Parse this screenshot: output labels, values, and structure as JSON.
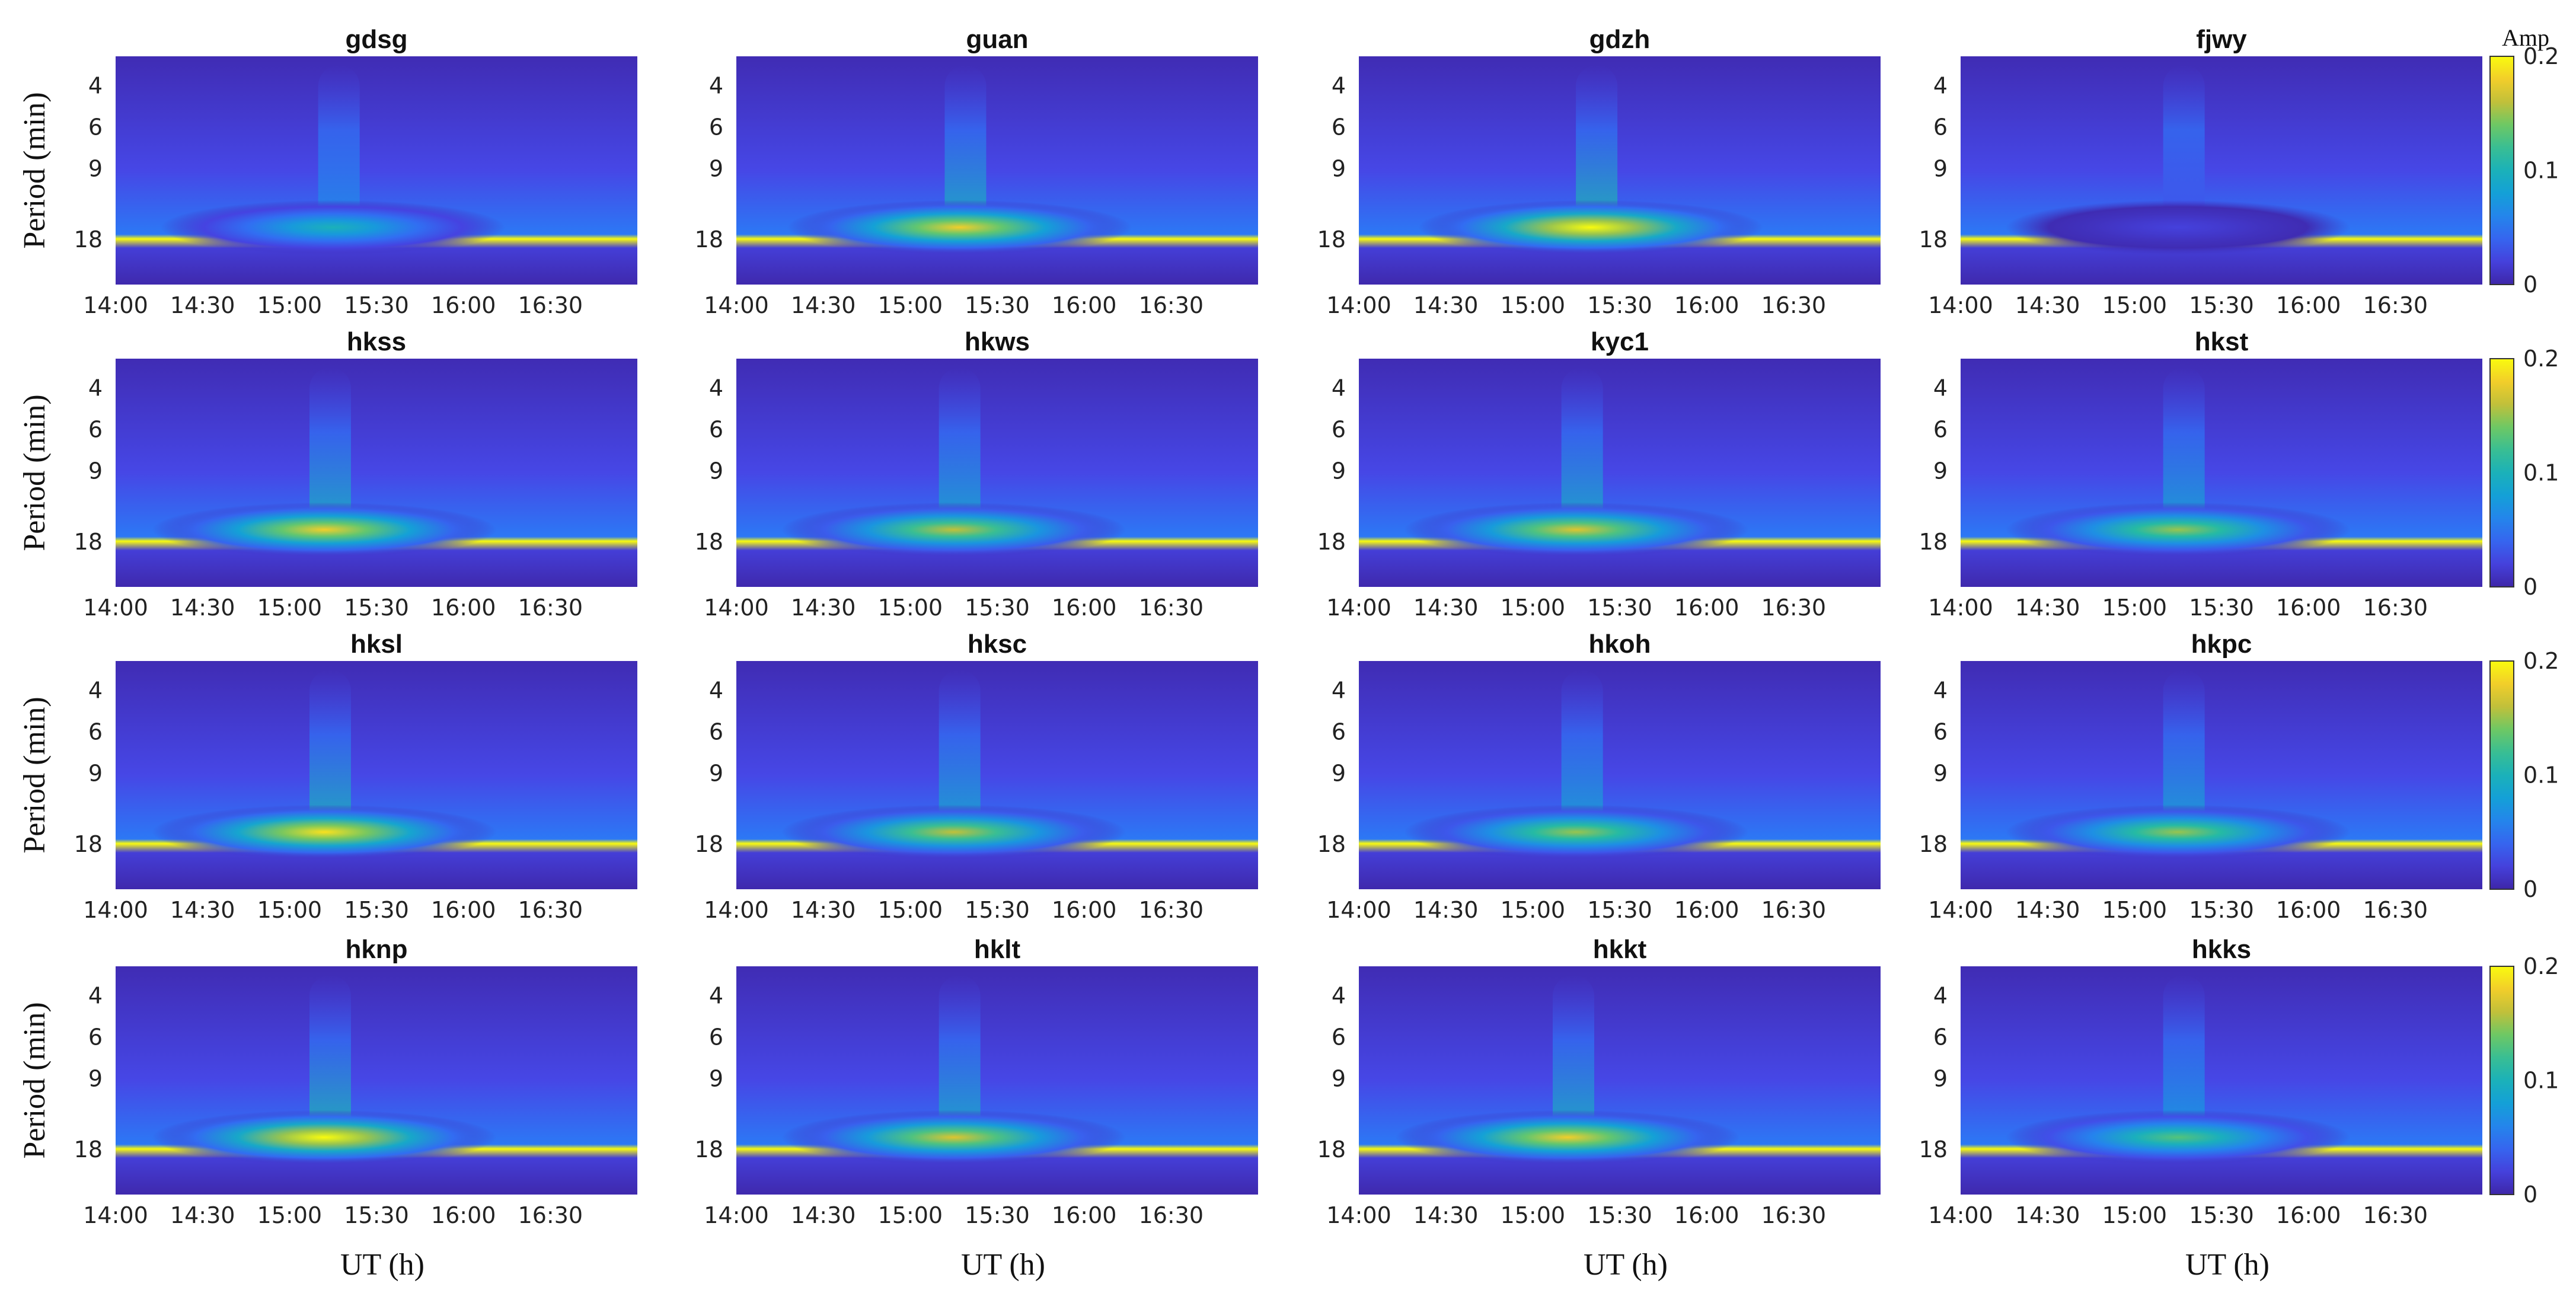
{
  "figure": {
    "ylabel": "Period (min)",
    "xlabel": "UT (h)",
    "colorbar": {
      "label": "Amp",
      "ticks": [
        "0.2",
        "0.1",
        "0"
      ]
    }
  },
  "chart_data": {
    "type": "heatmap",
    "colormap": "parula",
    "colors": {
      "low": "#3e26a8",
      "mid": "#1fb8b2",
      "high": "#f9fb0e"
    },
    "x_ticks": [
      "14:00",
      "14:30",
      "15:00",
      "15:30",
      "16:00",
      "16:30"
    ],
    "x_range": [
      "14:00",
      "17:00"
    ],
    "y_ticks": [
      "4",
      "6",
      "9",
      "18"
    ],
    "y_scale": "log",
    "value_range": [
      0,
      0.2
    ],
    "panels": [
      {
        "title": "gdsg",
        "peak_time": "15:15",
        "peak_period": 16,
        "peak_amp": 0.1
      },
      {
        "title": "guan",
        "peak_time": "15:17",
        "peak_period": 16,
        "peak_amp": 0.18
      },
      {
        "title": "gdzh",
        "peak_time": "15:20",
        "peak_period": 16,
        "peak_amp": 0.2
      },
      {
        "title": "fjwy",
        "peak_time": "15:15",
        "peak_period": 16,
        "peak_amp": 0.02
      },
      {
        "title": "hkss",
        "peak_time": "15:12",
        "peak_period": 16,
        "peak_amp": 0.18
      },
      {
        "title": "hkws",
        "peak_time": "15:15",
        "peak_period": 16,
        "peak_amp": 0.16
      },
      {
        "title": "kyc1",
        "peak_time": "15:15",
        "peak_period": 16,
        "peak_amp": 0.17
      },
      {
        "title": "hkst",
        "peak_time": "15:15",
        "peak_period": 16,
        "peak_amp": 0.15
      },
      {
        "title": "hksl",
        "peak_time": "15:12",
        "peak_period": 16,
        "peak_amp": 0.19
      },
      {
        "title": "hksc",
        "peak_time": "15:15",
        "peak_period": 16,
        "peak_amp": 0.16
      },
      {
        "title": "hkoh",
        "peak_time": "15:15",
        "peak_period": 16,
        "peak_amp": 0.15
      },
      {
        "title": "hkpc",
        "peak_time": "15:15",
        "peak_period": 16,
        "peak_amp": 0.15
      },
      {
        "title": "hknp",
        "peak_time": "15:12",
        "peak_period": 16,
        "peak_amp": 0.2
      },
      {
        "title": "hklt",
        "peak_time": "15:15",
        "peak_period": 16,
        "peak_amp": 0.17
      },
      {
        "title": "hkkt",
        "peak_time": "15:12",
        "peak_period": 16,
        "peak_amp": 0.18
      },
      {
        "title": "hkks",
        "peak_time": "15:15",
        "peak_period": 16,
        "peak_amp": 0.13
      }
    ]
  }
}
